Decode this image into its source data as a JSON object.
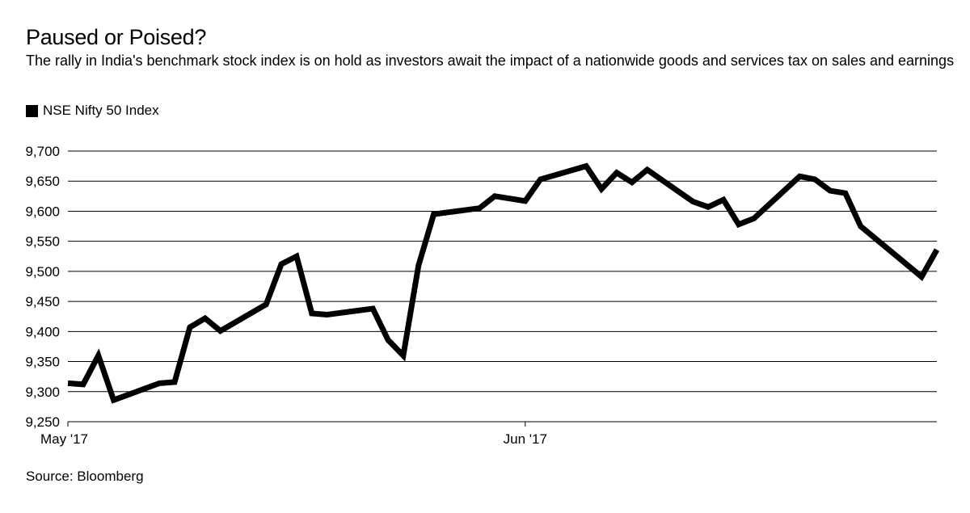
{
  "header": {
    "title": "Paused or Poised?",
    "subtitle": "The rally in India's benchmark stock index is on hold as investors await the impact of a nationwide goods and services tax on sales and earnings"
  },
  "legend": {
    "label": "NSE Nifty 50 Index",
    "color": "#000000"
  },
  "footer": {
    "source": "Source: Bloomberg"
  },
  "chart_data": {
    "type": "line",
    "title": "Paused or Poised?",
    "series": [
      {
        "name": "NSE Nifty 50 Index",
        "color": "#000000",
        "points": [
          [
            "2017-05-02",
            9314
          ],
          [
            "2017-05-03",
            9312
          ],
          [
            "2017-05-04",
            9360
          ],
          [
            "2017-05-05",
            9286
          ],
          [
            "2017-05-08",
            9314
          ],
          [
            "2017-05-09",
            9316
          ],
          [
            "2017-05-10",
            9407
          ],
          [
            "2017-05-11",
            9422
          ],
          [
            "2017-05-12",
            9401
          ],
          [
            "2017-05-15",
            9445
          ],
          [
            "2017-05-16",
            9512
          ],
          [
            "2017-05-17",
            9525
          ],
          [
            "2017-05-18",
            9430
          ],
          [
            "2017-05-19",
            9428
          ],
          [
            "2017-05-22",
            9438
          ],
          [
            "2017-05-23",
            9386
          ],
          [
            "2017-05-24",
            9360
          ],
          [
            "2017-05-25",
            9510
          ],
          [
            "2017-05-26",
            9595
          ],
          [
            "2017-05-29",
            9605
          ],
          [
            "2017-05-30",
            9625
          ],
          [
            "2017-05-31",
            9621
          ],
          [
            "2017-06-01",
            9617
          ],
          [
            "2017-06-02",
            9653
          ],
          [
            "2017-06-05",
            9675
          ],
          [
            "2017-06-06",
            9637
          ],
          [
            "2017-06-07",
            9664
          ],
          [
            "2017-06-08",
            9648
          ],
          [
            "2017-06-09",
            9669
          ],
          [
            "2017-06-12",
            9616
          ],
          [
            "2017-06-13",
            9607
          ],
          [
            "2017-06-14",
            9619
          ],
          [
            "2017-06-15",
            9578
          ],
          [
            "2017-06-16",
            9588
          ],
          [
            "2017-06-19",
            9658
          ],
          [
            "2017-06-20",
            9653
          ],
          [
            "2017-06-21",
            9634
          ],
          [
            "2017-06-22",
            9630
          ],
          [
            "2017-06-23",
            9575
          ],
          [
            "2017-06-26",
            9512
          ],
          [
            "2017-06-27",
            9491
          ],
          [
            "2017-06-28",
            9536
          ]
        ]
      }
    ],
    "x_ticks": [
      {
        "date": "2017-05-02",
        "label": "May '17"
      },
      {
        "date": "2017-06-01",
        "label": "Jun '17"
      }
    ],
    "y_ticks": [
      9250,
      9300,
      9350,
      9400,
      9450,
      9500,
      9550,
      9600,
      9650,
      9700
    ],
    "y_tick_labels": [
      "9,250",
      "9,300",
      "9,350",
      "9,400",
      "9,450",
      "9,500",
      "9,550",
      "9,600",
      "9,650",
      "9,700"
    ],
    "ylim": [
      9250,
      9700
    ],
    "xlim": [
      "2017-05-02",
      "2017-06-28"
    ],
    "grid": true,
    "legend_position": "top-left"
  }
}
